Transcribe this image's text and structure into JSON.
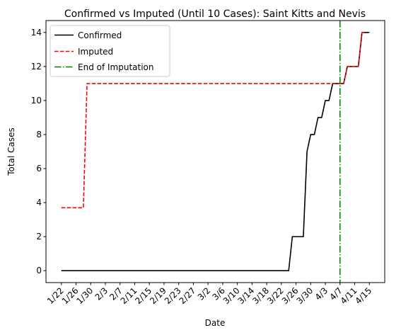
{
  "chart_data": {
    "type": "line",
    "title": "Confirmed vs Imputed (Until 10 Cases): Saint Kitts and Nevis",
    "xlabel": "Date",
    "ylabel": "Total Cases",
    "x_tick_labels": [
      "1/22",
      "1/26",
      "1/30",
      "2/3",
      "2/7",
      "2/11",
      "2/15",
      "2/19",
      "2/23",
      "2/27",
      "3/2",
      "3/6",
      "3/10",
      "3/14",
      "3/18",
      "3/22",
      "3/26",
      "3/30",
      "4/3",
      "4/7",
      "4/11",
      "4/15"
    ],
    "y_ticks": [
      0,
      2,
      4,
      6,
      8,
      10,
      12,
      14
    ],
    "ylim": [
      -0.7,
      14.7
    ],
    "legend_position": "top-left",
    "end_of_imputation": "4/7",
    "series": [
      {
        "name": "Confirmed",
        "color": "#000000",
        "style": "solid",
        "points": [
          [
            "1/22",
            0
          ],
          [
            "3/24",
            0
          ],
          [
            "3/25",
            2
          ],
          [
            "3/28",
            2
          ],
          [
            "3/29",
            7
          ],
          [
            "3/30",
            8
          ],
          [
            "3/31",
            8
          ],
          [
            "4/1",
            9
          ],
          [
            "4/2",
            9
          ],
          [
            "4/3",
            10
          ],
          [
            "4/4",
            10
          ],
          [
            "4/5",
            11
          ],
          [
            "4/6",
            11
          ],
          [
            "4/7",
            11
          ],
          [
            "4/8",
            11
          ],
          [
            "4/9",
            12
          ],
          [
            "4/10",
            12
          ],
          [
            "4/11",
            12
          ],
          [
            "4/12",
            12
          ],
          [
            "4/13",
            14
          ],
          [
            "4/14",
            14
          ],
          [
            "4/15",
            14
          ]
        ]
      },
      {
        "name": "Imputed",
        "color": "#ff0000",
        "style": "dashed",
        "points": [
          [
            "1/22",
            3.7
          ],
          [
            "1/28",
            3.7
          ],
          [
            "1/29",
            11
          ],
          [
            "4/5",
            11
          ],
          [
            "4/6",
            11
          ],
          [
            "4/7",
            11
          ],
          [
            "4/8",
            11
          ],
          [
            "4/9",
            12
          ],
          [
            "4/10",
            12
          ],
          [
            "4/11",
            12
          ],
          [
            "4/12",
            12
          ],
          [
            "4/13",
            14
          ],
          [
            "4/14",
            14
          ]
        ]
      },
      {
        "name": "End of Imputation",
        "color": "#008000",
        "style": "dashdot"
      }
    ]
  }
}
